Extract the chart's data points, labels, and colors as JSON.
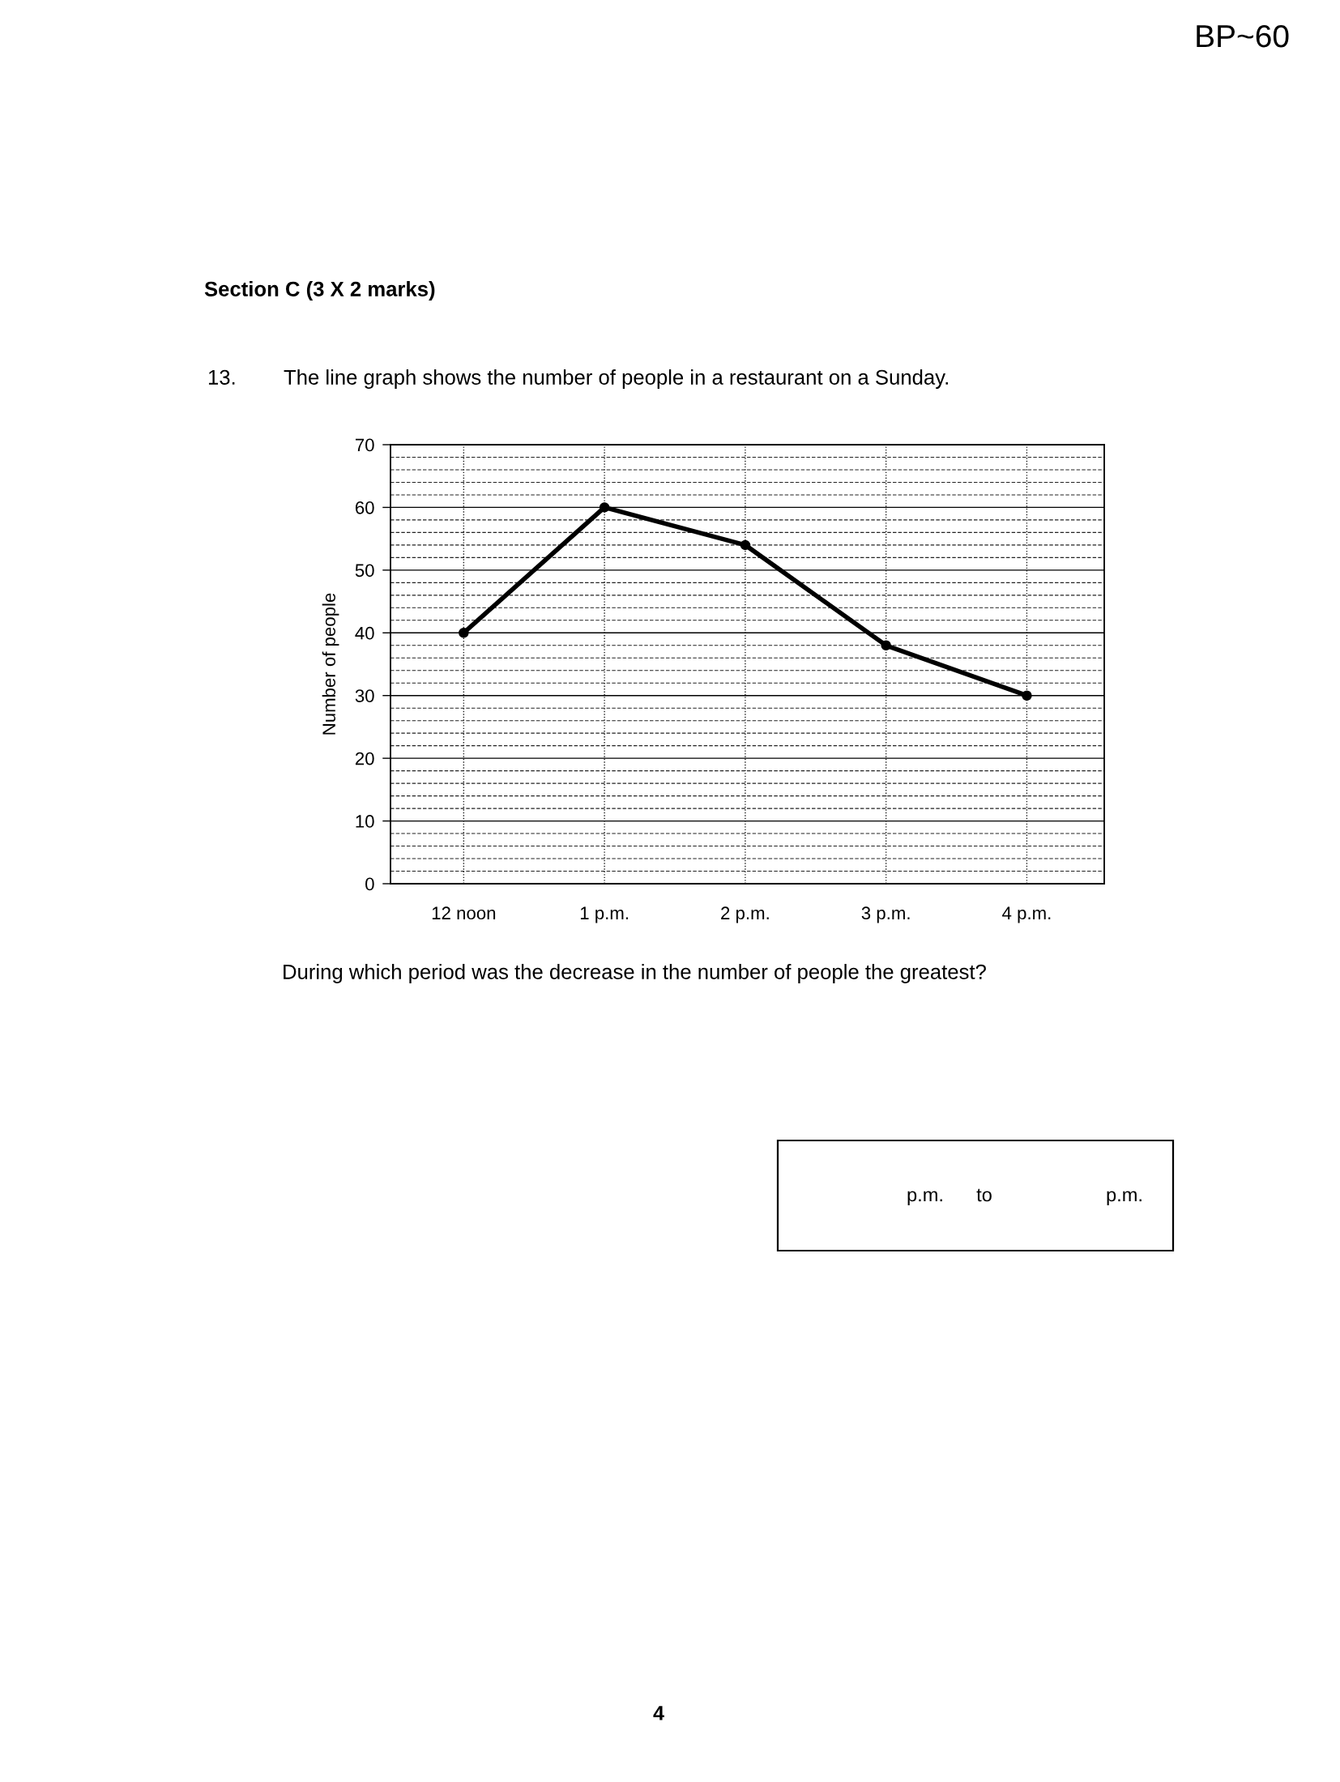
{
  "chart_data": {
    "type": "line",
    "title": "The line graph shows the number of people in a restaurant on a Sunday.",
    "ylabel": "Number of people",
    "categories": [
      "12 noon",
      "1 p.m.",
      "2 p.m.",
      "3 p.m.",
      "4 p.m."
    ],
    "series": [
      {
        "color": "#000000",
        "values": [
          40,
          60,
          54,
          38,
          30
        ]
      }
    ],
    "ylim": [
      0,
      70
    ],
    "yticks": [
      0,
      {
        "value": 2,
        "label": null
      },
      {
        "value": 4,
        "label": null
      },
      {
        "value": 6,
        "label": null
      },
      {
        "value": 8,
        "label": null
      },
      10,
      {
        "value": 12,
        "label": null
      },
      {
        "value": 14,
        "label": null
      },
      {
        "value": 16,
        "label": null
      },
      {
        "value": 18,
        "label": null
      },
      20,
      {
        "value": 22,
        "label": null
      },
      {
        "value": 24,
        "label": null
      },
      {
        "value": 26,
        "label": null
      },
      {
        "value": 28,
        "label": null
      },
      30,
      {
        "value": 32,
        "label": null
      },
      {
        "value": 34,
        "label": null
      },
      {
        "value": 36,
        "label": null
      },
      {
        "value": 38,
        "label": null
      },
      40,
      {
        "value": 42,
        "label": null
      },
      {
        "value": 44,
        "label": null
      },
      {
        "value": 46,
        "label": null
      },
      {
        "value": 48,
        "label": null
      },
      50,
      {
        "value": 52,
        "label": null
      },
      {
        "value": 54,
        "label": null
      },
      {
        "value": 56,
        "label": null
      },
      {
        "value": 58,
        "label": null
      },
      60,
      {
        "value": 62,
        "label": null
      },
      {
        "value": 64,
        "label": null
      },
      {
        "value": 66,
        "label": null
      },
      {
        "value": 68,
        "label": null
      },
      70
    ],
    "grid": true,
    "marker": "circle",
    "line_style": "solid",
    "annotations": [
      "BP~60",
      "Section C (3 X 2 marks)",
      "13.",
      "During which period was the decrease in the number of people the greatest?",
      "p.m.",
      "to",
      "p.m.",
      "4"
    ]
  }
}
